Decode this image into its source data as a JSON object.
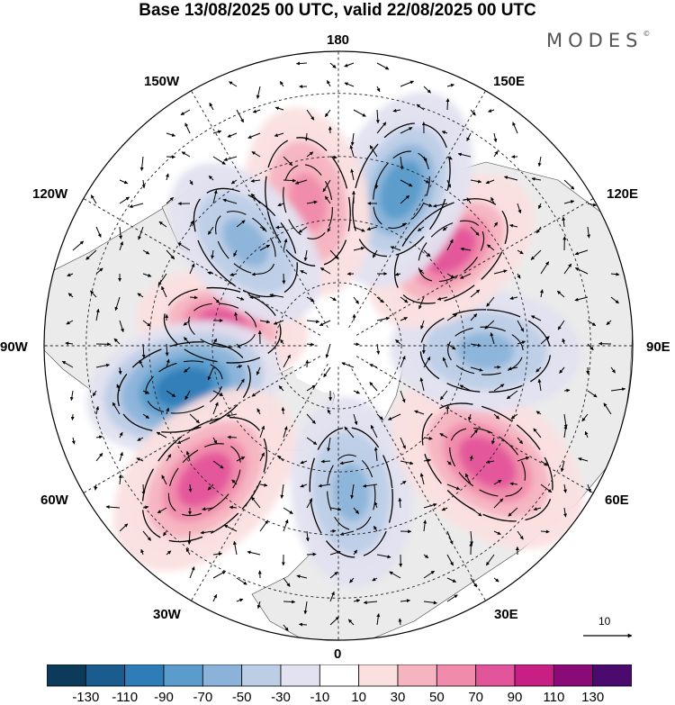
{
  "title": "Base 13/08/2025 00 UTC, valid 22/08/2025 00 UTC",
  "logo": "MODES",
  "logo_mark": "©",
  "longitude_labels": {
    "n180": "180",
    "w150": "150W",
    "e150": "150E",
    "w120": "120W",
    "e120": "120E",
    "w90": "90W",
    "e90": "90E",
    "w60": "60W",
    "e60": "60E",
    "w30": "30W",
    "e30": "30E",
    "s0": "0"
  },
  "reference_vector": "10",
  "colorbar": {
    "colors": [
      "#0b3a5a",
      "#1a5c8e",
      "#2f7db8",
      "#5a9ccb",
      "#8bb3d9",
      "#bccde6",
      "#e2e2f0",
      "#ffffff",
      "#fbe0e0",
      "#f6b3c0",
      "#f08bab",
      "#e3559a",
      "#c81f85",
      "#8a0a78",
      "#4a0a6e"
    ],
    "ticks": [
      "-130",
      "-110",
      "-90",
      "-70",
      "-50",
      "-30",
      "-10",
      "10",
      "30",
      "50",
      "70",
      "90",
      "110",
      "130"
    ]
  },
  "anomaly_centers": [
    {
      "lon": -100,
      "lat": 62,
      "sign": "positive",
      "magnitude": 75
    },
    {
      "lon": -75,
      "lat": 52,
      "sign": "negative",
      "magnitude": -95
    },
    {
      "lon": -45,
      "lat": 45,
      "sign": "positive",
      "magnitude": 70
    },
    {
      "lon": 5,
      "lat": 55,
      "sign": "negative",
      "magnitude": -60
    },
    {
      "lon": 52,
      "lat": 45,
      "sign": "positive",
      "magnitude": 85
    },
    {
      "lon": 88,
      "lat": 55,
      "sign": "negative",
      "magnitude": -65
    },
    {
      "lon": 130,
      "lat": 55,
      "sign": "positive",
      "magnitude": 70
    },
    {
      "lon": 158,
      "lat": 50,
      "sign": "negative",
      "magnitude": -75
    },
    {
      "lon": -168,
      "lat": 55,
      "sign": "positive",
      "magnitude": 65
    },
    {
      "lon": -138,
      "lat": 57,
      "sign": "negative",
      "magnitude": -60
    }
  ]
}
